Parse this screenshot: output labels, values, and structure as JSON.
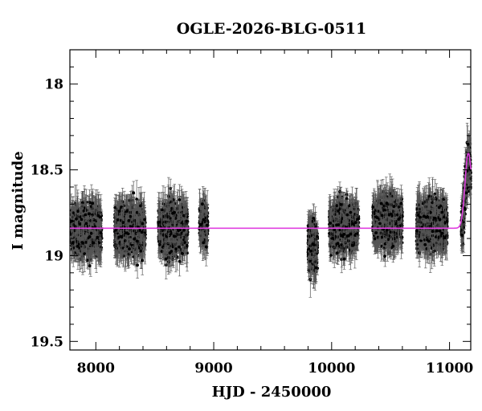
{
  "chart_data": {
    "type": "scatter",
    "title": "OGLE-2026-BLG-0511",
    "xlabel": "HJD - 2450000",
    "ylabel": "I magnitude",
    "xlim": [
      7780,
      11180
    ],
    "ylim": [
      19.55,
      17.8
    ],
    "y_inverted": true,
    "x_ticks": [
      8000,
      9000,
      10000,
      11000
    ],
    "x_tick_labels": [
      "8000",
      "9000",
      "10000",
      "11000"
    ],
    "y_ticks": [
      18,
      18.5,
      19,
      19.5
    ],
    "y_tick_labels": [
      "18",
      "18.5",
      "19",
      "19.5"
    ],
    "grid": false,
    "colors": {
      "points": "#000000",
      "errorbars": "#555555",
      "model": "#e040e0"
    },
    "series": [
      {
        "kind": "photometry",
        "seasons": [
          {
            "x_range": [
              7790,
              8050
            ],
            "mag_center": 18.85,
            "mag_spread": 0.16
          },
          {
            "x_range": [
              8160,
              8420
            ],
            "mag_center": 18.85,
            "mag_spread": 0.16
          },
          {
            "x_range": [
              8530,
              8780
            ],
            "mag_center": 18.85,
            "mag_spread": 0.17
          },
          {
            "x_range": [
              8880,
              8950
            ],
            "mag_center": 18.82,
            "mag_spread": 0.12
          },
          {
            "x_range": [
              9800,
              9880
            ],
            "mag_center": 18.95,
            "mag_spread": 0.17
          },
          {
            "x_range": [
              9980,
              10230
            ],
            "mag_center": 18.83,
            "mag_spread": 0.16
          },
          {
            "x_range": [
              10350,
              10600
            ],
            "mag_center": 18.8,
            "mag_spread": 0.16
          },
          {
            "x_range": [
              10720,
              10980
            ],
            "mag_center": 18.82,
            "mag_spread": 0.16
          },
          {
            "x_range": [
              11100,
              11180
            ],
            "mag_center": 18.55,
            "mag_spread": 0.14
          }
        ]
      },
      {
        "kind": "model",
        "baseline_mag": 18.84,
        "peak_mag": 18.4,
        "peak_x": 11160,
        "rise_start_x": 11000
      }
    ]
  }
}
